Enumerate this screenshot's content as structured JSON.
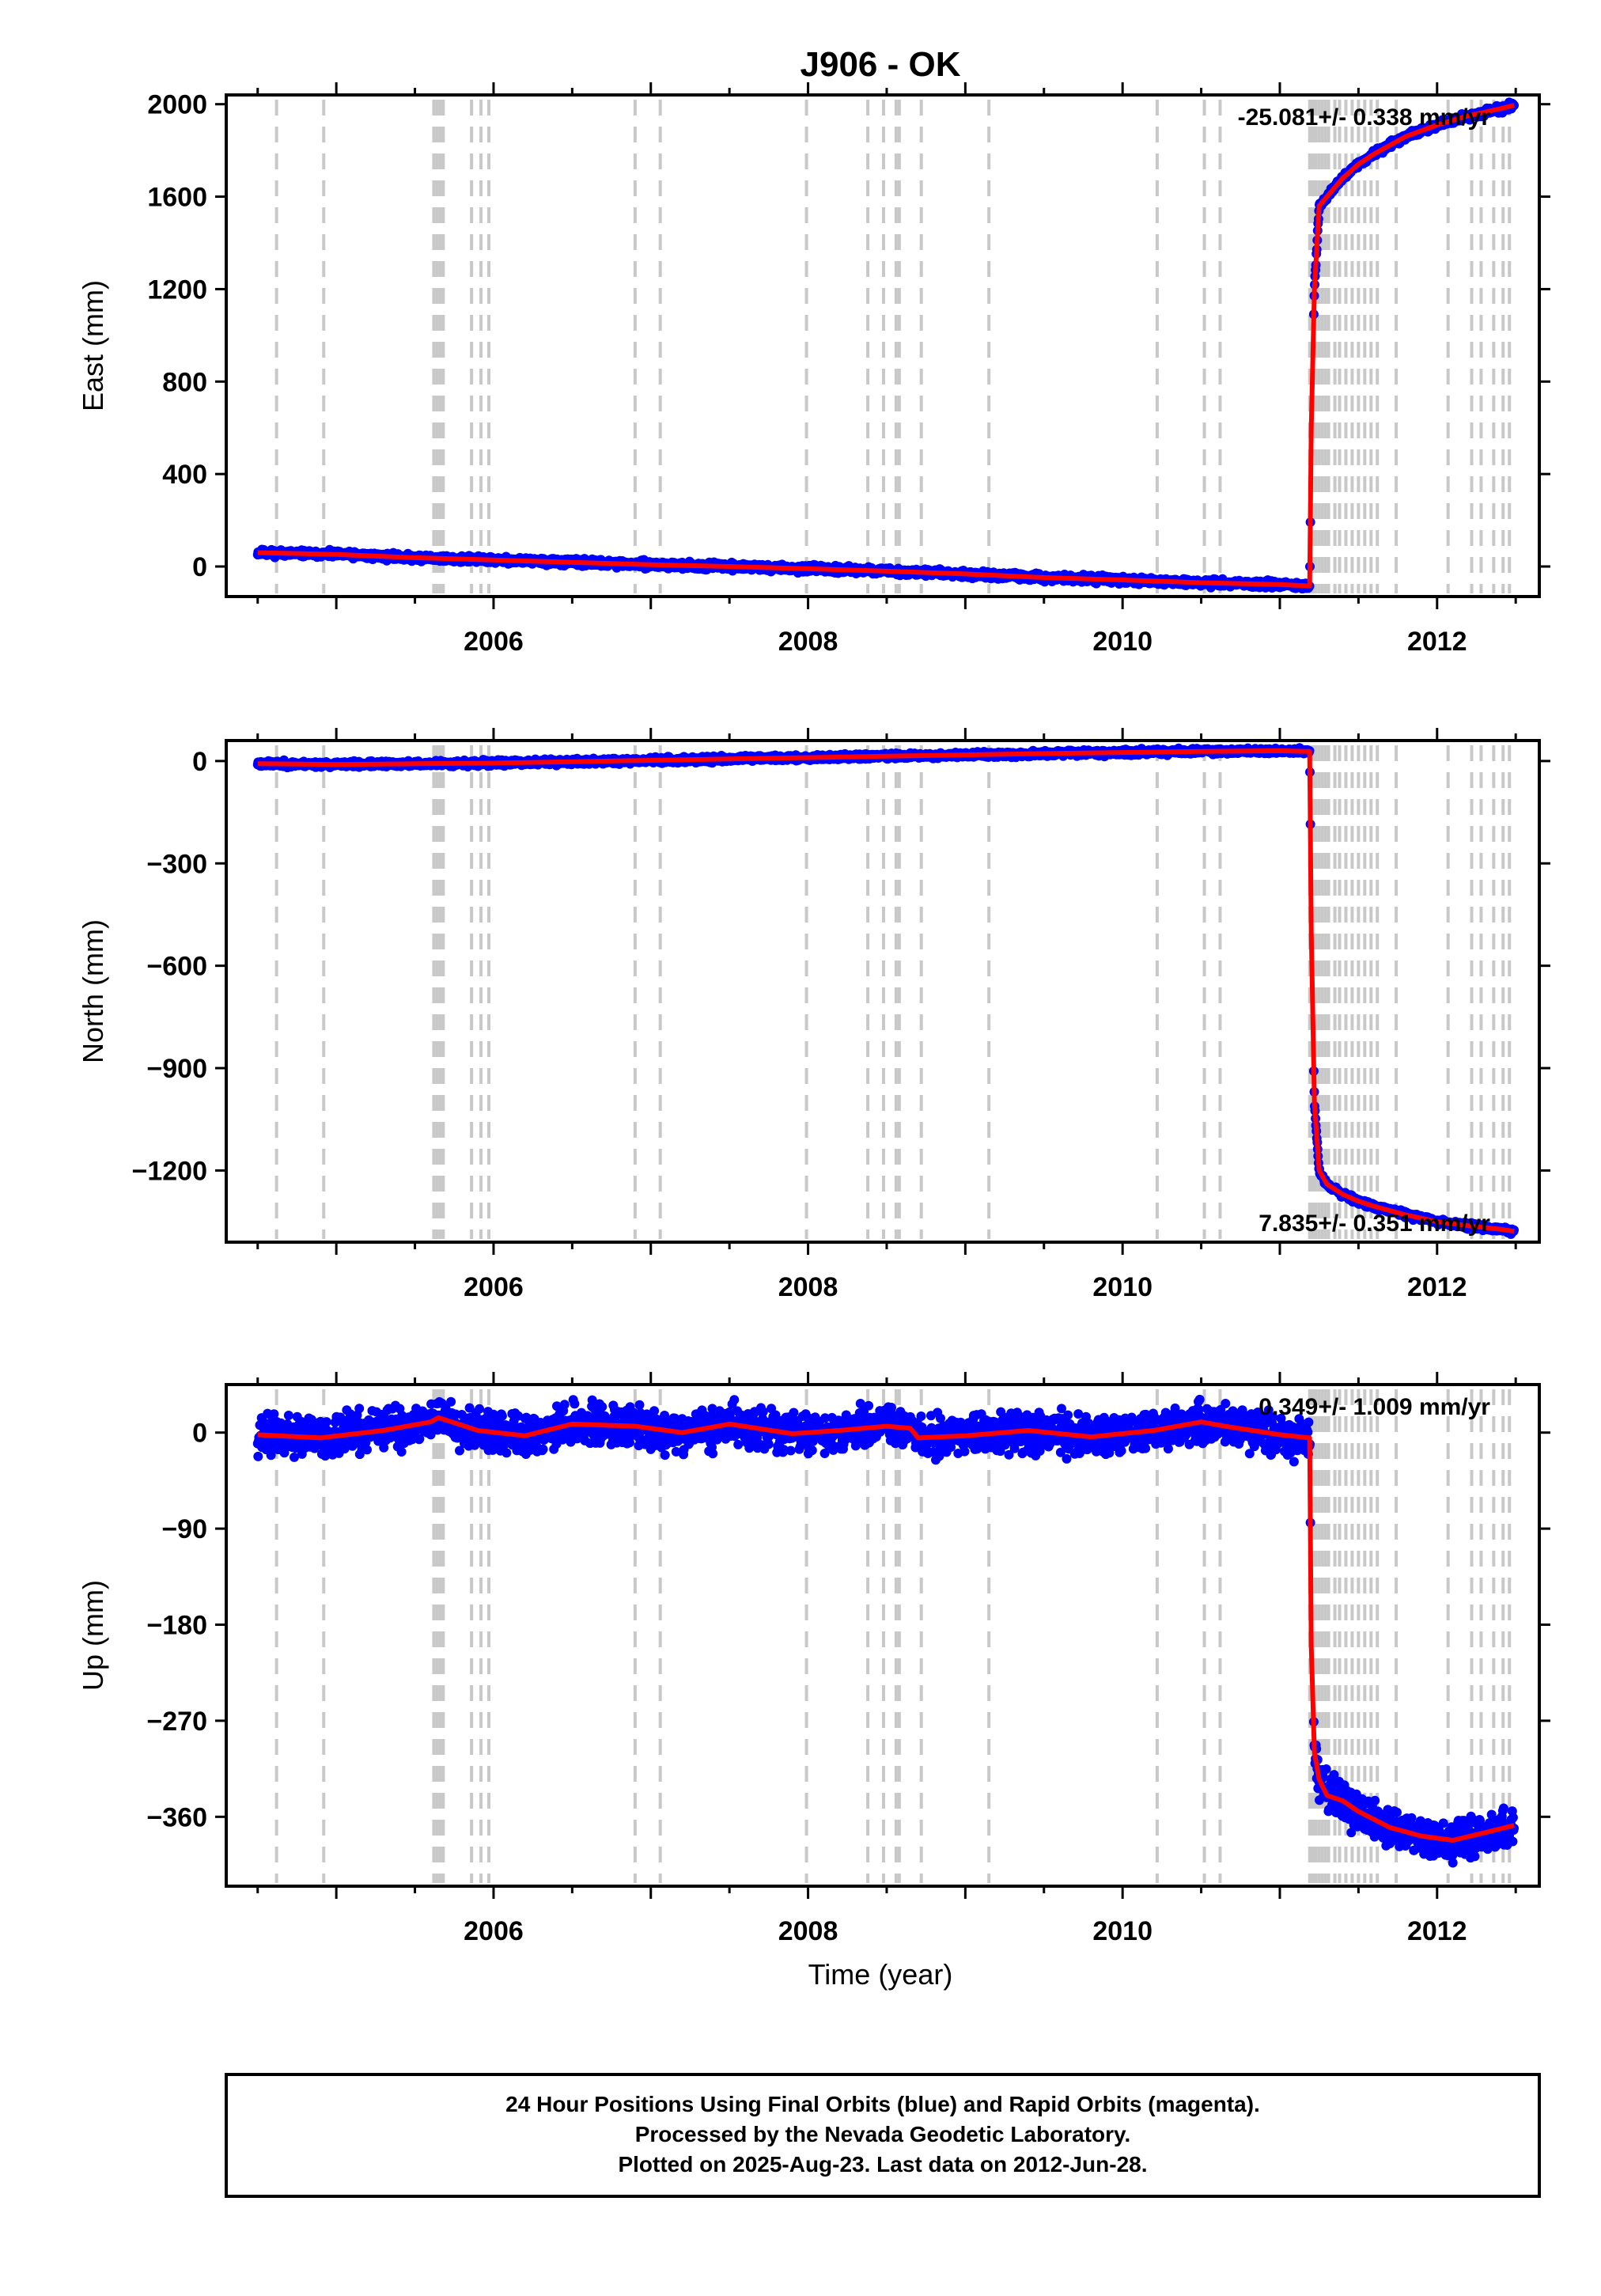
{
  "title": "J906 - OK",
  "xlabel": "Time (year)",
  "footer": {
    "line1": "24 Hour Positions Using Final Orbits (blue) and Rapid Orbits (magenta).",
    "line2": "Processed by the Nevada Geodetic Laboratory.",
    "line3": "Plotted on 2025-Aug-23. Last data on 2012-Jun-28."
  },
  "colors": {
    "observations": "#0000ff",
    "model": "#ff0000",
    "event_lines": "#c8c8c8",
    "frame": "#000000"
  },
  "chart_data": [
    {
      "type": "scatter",
      "component": "east",
      "ylabel": "East (mm)",
      "xlim": [
        2004.3,
        2012.65
      ],
      "ylim": [
        -130,
        2040
      ],
      "yticks": [
        0,
        400,
        800,
        1200,
        1600,
        2000
      ],
      "yticklabels": [
        "0",
        "400",
        "800",
        "1200",
        "1600",
        "2000"
      ],
      "xticks": [
        2006,
        2008,
        2010,
        2012
      ],
      "xticklabels": [
        "2006",
        "2008",
        "2010",
        "2012"
      ],
      "rate_label": "-25.081+/- 0.338 mm/yr",
      "rate_position": "top-right",
      "grid": false,
      "series": [
        {
          "role": "model",
          "x": [
            2004.5,
            2005.0,
            2005.5,
            2006.0,
            2006.5,
            2007.0,
            2007.5,
            2008.0,
            2008.5,
            2009.0,
            2009.5,
            2010.0,
            2010.5,
            2011.0,
            2011.19,
            2011.2,
            2011.22,
            2011.25,
            2011.3,
            2011.4,
            2011.5,
            2011.6,
            2011.8,
            2012.0,
            2012.2,
            2012.4,
            2012.49
          ],
          "y": [
            60,
            52,
            38,
            28,
            18,
            8,
            0,
            -10,
            -20,
            -32,
            -48,
            -58,
            -70,
            -78,
            -84,
            600,
            1200,
            1560,
            1600,
            1680,
            1740,
            1785,
            1860,
            1910,
            1950,
            1980,
            1995
          ]
        },
        {
          "role": "noise",
          "amplitude": 7,
          "seed": 11
        }
      ]
    },
    {
      "type": "scatter",
      "component": "north",
      "ylabel": "North (mm)",
      "xlim": [
        2004.3,
        2012.65
      ],
      "ylim": [
        -1410,
        60
      ],
      "yticks": [
        0,
        -300,
        -600,
        -900,
        -1200
      ],
      "yticklabels": [
        "0",
        "−300",
        "−600",
        "−900",
        "−1200"
      ],
      "xticks": [
        2006,
        2008,
        2010,
        2012
      ],
      "xticklabels": [
        "2006",
        "2008",
        "2010",
        "2012"
      ],
      "rate_label": "7.835+/- 0.351 mm/yr",
      "rate_position": "bottom-right",
      "grid": false,
      "series": [
        {
          "role": "model",
          "x": [
            2004.5,
            2005.0,
            2005.5,
            2006.0,
            2006.5,
            2007.0,
            2007.5,
            2008.0,
            2008.5,
            2009.0,
            2009.5,
            2010.0,
            2010.5,
            2011.0,
            2011.19,
            2011.2,
            2011.22,
            2011.25,
            2011.3,
            2011.4,
            2011.5,
            2011.6,
            2011.8,
            2012.0,
            2012.2,
            2012.4,
            2012.49
          ],
          "y": [
            -8,
            -10,
            -8,
            -6,
            -2,
            2,
            6,
            10,
            14,
            18,
            22,
            25,
            28,
            30,
            28,
            -500,
            -1000,
            -1200,
            -1240,
            -1270,
            -1290,
            -1305,
            -1330,
            -1350,
            -1362,
            -1372,
            -1378
          ]
        },
        {
          "role": "noise",
          "amplitude": 4,
          "seed": 23
        }
      ]
    },
    {
      "type": "scatter",
      "component": "up",
      "ylabel": "Up (mm)",
      "xlim": [
        2004.3,
        2012.65
      ],
      "ylim": [
        -425,
        45
      ],
      "yticks": [
        0,
        -90,
        -180,
        -270,
        -360
      ],
      "yticklabels": [
        "0",
        "−90",
        "−180",
        "−270",
        "−360"
      ],
      "xticks": [
        2006,
        2008,
        2010,
        2012
      ],
      "xticklabels": [
        "2006",
        "2008",
        "2010",
        "2012"
      ],
      "rate_label": "0.349+/- 1.009 mm/yr",
      "rate_position": "top-right",
      "grid": false,
      "series": [
        {
          "role": "model",
          "x": [
            2004.5,
            2004.9,
            2005.3,
            2005.6,
            2005.65,
            2005.9,
            2006.2,
            2006.5,
            2006.9,
            2007.2,
            2007.5,
            2007.9,
            2008.2,
            2008.5,
            2008.65,
            2008.7,
            2009.0,
            2009.4,
            2009.8,
            2010.2,
            2010.5,
            2010.65,
            2011.0,
            2011.19,
            2011.2,
            2011.22,
            2011.25,
            2011.3,
            2011.4,
            2011.5,
            2011.7,
            2011.9,
            2012.1,
            2012.3,
            2012.49
          ],
          "y": [
            -2,
            -5,
            2,
            10,
            14,
            2,
            -3,
            8,
            6,
            0,
            8,
            -1,
            2,
            6,
            4,
            -5,
            -3,
            2,
            -4,
            2,
            10,
            6,
            -2,
            -5,
            -200,
            -300,
            -325,
            -340,
            -345,
            -355,
            -370,
            -378,
            -382,
            -375,
            -368
          ]
        },
        {
          "role": "noise",
          "amplitude": 9,
          "seed": 37
        }
      ]
    }
  ],
  "event_times": [
    2004.62,
    2004.92,
    2005.62,
    2005.64,
    2005.66,
    2005.68,
    2005.86,
    2005.92,
    2005.97,
    2006.9,
    2007.06,
    2007.99,
    2008.38,
    2008.48,
    2008.56,
    2008.58,
    2008.72,
    2009.15,
    2010.22,
    2010.52,
    2010.62,
    2011.19,
    2011.2,
    2011.21,
    2011.22,
    2011.23,
    2011.25,
    2011.27,
    2011.29,
    2011.31,
    2011.35,
    2011.38,
    2011.42,
    2011.46,
    2011.5,
    2011.54,
    2011.58,
    2011.62,
    2011.74,
    2012.07,
    2012.22,
    2012.28,
    2012.36,
    2012.42,
    2012.46
  ]
}
